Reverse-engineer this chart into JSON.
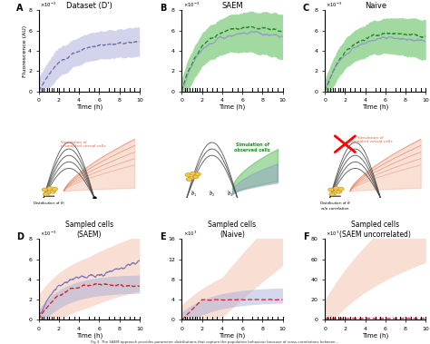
{
  "title_A": "Dataset (D')",
  "title_B": "SAEM",
  "title_C": "Naive",
  "title_D": "Sampled cells\n(SAEM)",
  "title_E": "Sampled cells\n(Naive)",
  "title_F": "Sampled cells\n(SAEM uncorrelated)",
  "xlabel": "Time (h)",
  "ylabel_top": "Fluorescence (AU)",
  "color_A_fill": "#b0b0dd",
  "color_A_line": "#7070aa",
  "color_B_fill": "#55bb55",
  "color_B_line": "#228822",
  "color_C_fill": "#55bb55",
  "color_C_line": "#228822",
  "color_purple_overlay": "#9090cc",
  "color_salmon_outer": "#f4c4b0",
  "color_salmon_inner": "#e8a888",
  "color_blue_inner": "#a0a8d8",
  "color_red_dashed": "#cc2222",
  "color_blue_line_D": "#7878bb",
  "color_bg_diag": "#e8e8e8",
  "color_arc": "#555555",
  "color_salmon_text": "#dd6644",
  "color_green_text": "#228822",
  "tick_x": [
    0.3,
    0.5,
    0.8,
    1.0,
    1.3,
    1.5,
    1.8,
    2.0,
    2.5,
    3.0,
    3.5,
    4.0,
    5.0,
    5.5,
    6.0,
    7.0,
    7.5,
    8.0,
    8.5,
    9.0,
    9.5,
    10.0
  ]
}
